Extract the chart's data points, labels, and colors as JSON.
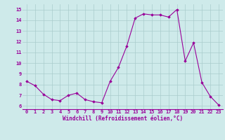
{
  "x": [
    0,
    1,
    2,
    3,
    4,
    5,
    6,
    7,
    8,
    9,
    10,
    11,
    12,
    13,
    14,
    15,
    16,
    17,
    18,
    19,
    20,
    21,
    22,
    23
  ],
  "y": [
    8.3,
    7.9,
    7.1,
    6.6,
    6.5,
    7.0,
    7.2,
    6.6,
    6.4,
    6.3,
    8.3,
    9.6,
    11.6,
    14.2,
    14.6,
    14.5,
    14.5,
    14.3,
    15.0,
    10.2,
    11.9,
    8.2,
    6.9,
    6.1
  ],
  "line_color": "#990099",
  "marker": "D",
  "marker_size": 1.8,
  "linewidth": 0.8,
  "xlabel": "Windchill (Refroidissement éolien,°C)",
  "xlabel_fontsize": 5.5,
  "ylabel_ticks": [
    6,
    7,
    8,
    9,
    10,
    11,
    12,
    13,
    14,
    15
  ],
  "xticks": [
    0,
    1,
    2,
    3,
    4,
    5,
    6,
    7,
    8,
    9,
    10,
    11,
    12,
    13,
    14,
    15,
    16,
    17,
    18,
    19,
    20,
    21,
    22,
    23
  ],
  "xlim": [
    -0.5,
    23.5
  ],
  "ylim": [
    5.7,
    15.5
  ],
  "background_color": "#ceeaea",
  "grid_color": "#aacccc",
  "tick_fontsize": 5.0
}
